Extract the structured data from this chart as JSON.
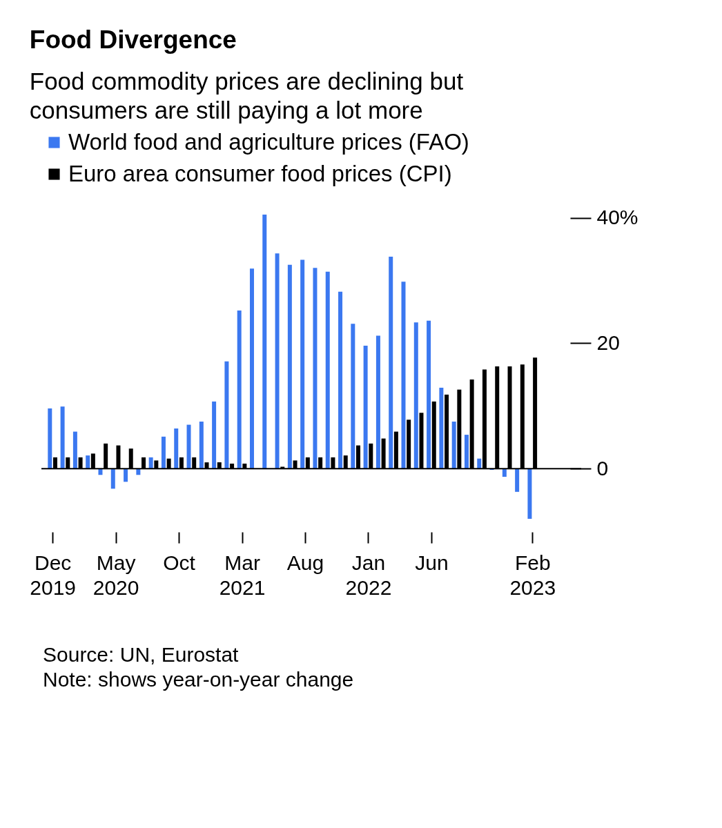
{
  "chart_data": {
    "type": "bar",
    "title": "Food Divergence",
    "subtitle": "Food commodity prices are declining but consumers are still paying a lot more",
    "categories": [
      "Dec 2019",
      null,
      null,
      null,
      null,
      "May 2020",
      null,
      null,
      null,
      null,
      "Oct",
      null,
      null,
      null,
      null,
      "Mar 2021",
      null,
      null,
      null,
      null,
      "Aug",
      null,
      null,
      null,
      null,
      "Jan 2022",
      null,
      null,
      null,
      null,
      "Jun",
      null,
      null,
      null,
      null,
      null,
      null,
      null,
      "Feb 2023"
    ],
    "series": [
      {
        "name": "World food and agriculture prices (FAO)",
        "color": "#3b78f0",
        "values": [
          9.6,
          9.9,
          5.9,
          2.1,
          -1.0,
          -3.2,
          -2.1,
          -1.0,
          1.8,
          5.1,
          6.4,
          7.0,
          7.5,
          10.7,
          17.1,
          25.2,
          31.9,
          40.5,
          34.3,
          32.5,
          33.3,
          32.0,
          31.4,
          28.2,
          23.1,
          19.6,
          21.2,
          33.8,
          29.8,
          23.3,
          23.6,
          12.9,
          7.5,
          5.4,
          1.6,
          -0.2,
          -1.3,
          -3.7,
          -8.0
        ]
      },
      {
        "name": "Euro area consumer food prices (CPI)",
        "color": "#000000",
        "values": [
          1.8,
          1.8,
          1.8,
          2.4,
          4.0,
          3.7,
          3.2,
          1.8,
          1.3,
          1.6,
          1.8,
          1.8,
          1.0,
          1.0,
          0.8,
          0.8,
          0.0,
          0.0,
          0.3,
          1.3,
          1.8,
          1.8,
          1.8,
          2.1,
          3.7,
          4.0,
          4.8,
          5.9,
          7.8,
          8.9,
          10.7,
          11.8,
          12.6,
          14.2,
          15.8,
          16.3,
          16.3,
          16.6,
          17.7
        ]
      }
    ],
    "ylim": [
      -9,
      40.5
    ],
    "yticks": [
      0,
      20,
      {
        "value": 40,
        "label": "40%"
      }
    ],
    "ref_lines": [
      {
        "axis": "y",
        "value": 0,
        "color": "#000000"
      }
    ],
    "grid": false,
    "legend": "top left",
    "annotations": [
      "Source: UN, Eurostat",
      "Note: shows year-on-year change"
    ]
  }
}
